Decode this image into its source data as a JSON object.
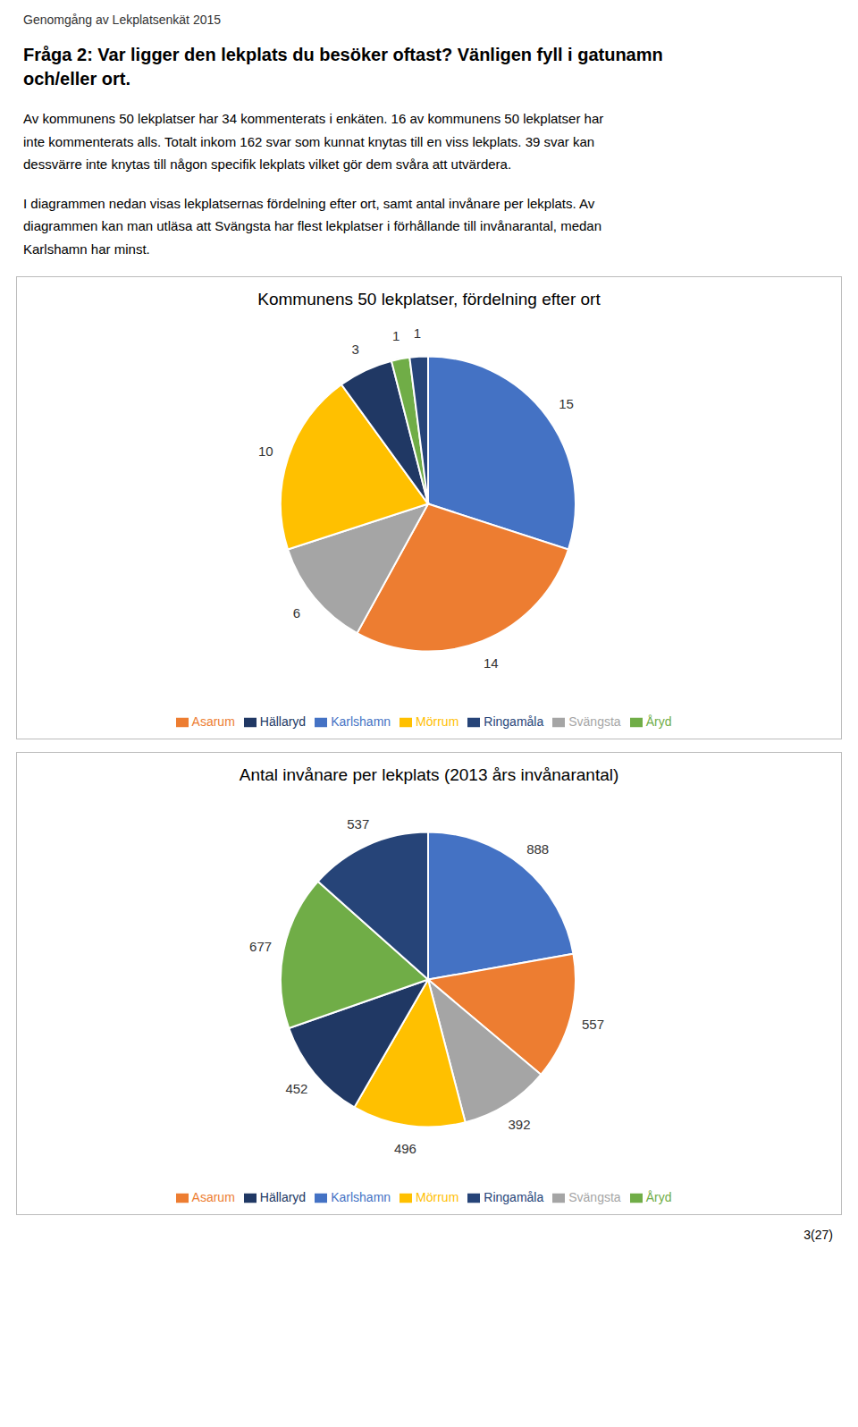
{
  "header": "Genomgång av Lekplatsenkät 2015",
  "title": [
    "Fråga 2: Var ligger den lekplats du besöker oftast? Vänligen fyll i gatunamn",
    "och/eller ort."
  ],
  "paragraphs": [
    [
      "Av kommunens 50 lekplatser har 34 kommenterats i enkäten. 16 av kommunens 50 lekplatser har",
      "inte kommenterats alls. Totalt inkom 162 svar som kunnat knytas till en viss lekplats. 39 svar kan",
      "dessvärre inte knytas till någon specifik lekplats vilket gör dem svåra att utvärdera."
    ],
    [
      "I diagrammen nedan visas lekplatsernas fördelning efter ort, samt antal invånare per lekplats. Av",
      "diagrammen kan man utläsa att Svängsta har flest lekplatser i förhållande till invånarantal, medan",
      "Karlshamn har minst."
    ]
  ],
  "page_number": "3(27)",
  "chart_data": [
    {
      "type": "pie",
      "title": "Kommunens 50 lekplatser, fördelning efter ort",
      "categories": [
        "Karlshamn",
        "Asarum",
        "Svängsta",
        "Mörrum",
        "Hällaryd",
        "Åryd",
        "Ringamåla"
      ],
      "values": [
        15,
        14,
        6,
        10,
        3,
        1,
        1
      ],
      "colors": [
        "#4472C4",
        "#ED7D31",
        "#A5A5A5",
        "#FFC000",
        "#203864",
        "#70AD47",
        "#264478"
      ],
      "data_labels": true,
      "legend": "bottom"
    },
    {
      "type": "pie",
      "title": "Antal invånare per lekplats (2013 års invånarantal)",
      "categories": [
        "Karlshamn",
        "Asarum",
        "Svängsta",
        "Mörrum",
        "Hällaryd",
        "Åryd",
        "Ringamåla"
      ],
      "values": [
        888,
        557,
        392,
        496,
        452,
        677,
        537
      ],
      "colors": [
        "#4472C4",
        "#ED7D31",
        "#A5A5A5",
        "#FFC000",
        "#203864",
        "#70AD47",
        "#264478"
      ],
      "data_labels": true,
      "legend": "bottom"
    }
  ]
}
